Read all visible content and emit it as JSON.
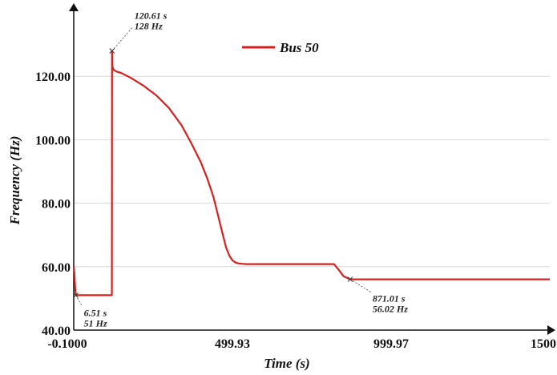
{
  "chart_data": {
    "type": "line",
    "title": "",
    "xlabel": "Time (s)",
    "ylabel": "Frequency (Hz)",
    "xlim": [
      -0.1,
      1500
    ],
    "ylim": [
      40,
      140
    ],
    "x_ticks": [
      {
        "value": -0.1,
        "label": "-0.1000"
      },
      {
        "value": 499.93,
        "label": "499.93"
      },
      {
        "value": 999.97,
        "label": "999.97"
      },
      {
        "value": 1500,
        "label": "1500"
      }
    ],
    "y_ticks": [
      {
        "value": 40,
        "label": "40.00"
      },
      {
        "value": 60,
        "label": "60.00"
      },
      {
        "value": 80,
        "label": "80.00"
      },
      {
        "value": 100,
        "label": "100.00"
      },
      {
        "value": 120,
        "label": "120.00"
      }
    ],
    "grid": "horizontal, light gray at major y ticks",
    "legend_position": "top-center",
    "series": [
      {
        "name": "Bus 50",
        "color": "#d42020",
        "x": [
          0,
          2,
          4,
          6.51,
          110,
          120,
          120.61,
          122,
          126,
          135,
          150,
          180,
          220,
          260,
          300,
          340,
          370,
          400,
          420,
          440,
          455,
          470,
          480,
          490,
          500,
          510,
          520,
          530,
          545,
          565,
          600,
          700,
          800,
          820,
          835,
          850,
          871.01,
          900,
          1000,
          1100,
          1200,
          1300,
          1400,
          1500
        ],
        "y": [
          60,
          58,
          54,
          51,
          51,
          51,
          128,
          123,
          122,
          121.5,
          121,
          119.5,
          117,
          114,
          110,
          104.5,
          99,
          93,
          88,
          82,
          76,
          70,
          66,
          63.5,
          62,
          61.3,
          61,
          60.9,
          60.8,
          60.8,
          60.8,
          60.8,
          60.8,
          60.8,
          59,
          57,
          56.02,
          56,
          56,
          56,
          56,
          56,
          56,
          56
        ]
      }
    ],
    "annotations": [
      {
        "x": 120.61,
        "y": 128,
        "line1": "120.61 s",
        "line2": "128 Hz"
      },
      {
        "x": 6.51,
        "y": 51,
        "line1": "6.51 s",
        "line2": "51 Hz"
      },
      {
        "x": 871.01,
        "y": 56.02,
        "line1": "871.01 s",
        "line2": "56.02 Hz"
      }
    ]
  }
}
